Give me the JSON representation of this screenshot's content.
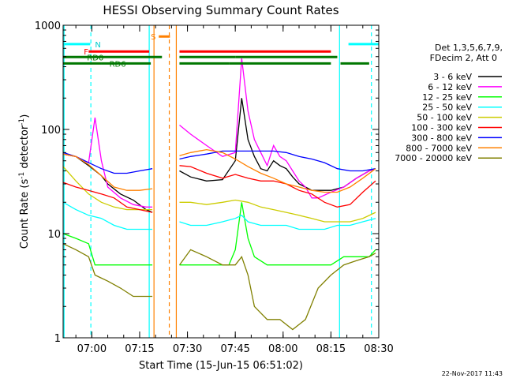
{
  "chart_data": {
    "type": "line",
    "title": "HESSI Observing Summary Count Rates",
    "xlabel": "Start Time (15-Jun-15 06:51:02)",
    "ylabel": "Count Rate (s",
    "ylabel_sup": "-1",
    "ylabel_mid": " detector",
    "ylabel_end": ")",
    "y_scale": "log",
    "ylim": [
      1,
      1000
    ],
    "xlim_minutes": [
      0,
      99
    ],
    "y_ticks": [
      {
        "value": 1,
        "label": "1"
      },
      {
        "value": 10,
        "label": "10"
      },
      {
        "value": 100,
        "label": "100"
      },
      {
        "value": 1000,
        "label": "1000"
      }
    ],
    "x_ticks": [
      {
        "value": 9,
        "label": "07:00"
      },
      {
        "value": 24,
        "label": "07:15"
      },
      {
        "value": 39,
        "label": "07:30"
      },
      {
        "value": 54,
        "label": "07:45"
      },
      {
        "value": 69,
        "label": "08:00"
      },
      {
        "value": 84,
        "label": "08:15"
      },
      {
        "value": 99,
        "label": "08:30"
      }
    ],
    "legend_header": [
      "Det 1,3,5,6,7,9,",
      "FDecim 2, Att 0"
    ],
    "timestamp": "22-Nov-2017 11:43",
    "data_gaps": [
      [
        28.5,
        36.5
      ]
    ],
    "series": [
      {
        "name": "3 - 6 keV",
        "color": "#000000",
        "values": [
          [
            0,
            58
          ],
          [
            4,
            55
          ],
          [
            8,
            45
          ],
          [
            12,
            36
          ],
          [
            14,
            30
          ],
          [
            18,
            24
          ],
          [
            22,
            21
          ],
          [
            26,
            17
          ],
          [
            28,
            16
          ],
          [
            36.5,
            40
          ],
          [
            40,
            35
          ],
          [
            45,
            32
          ],
          [
            50,
            33
          ],
          [
            54,
            50
          ],
          [
            56,
            200
          ],
          [
            58,
            80
          ],
          [
            60,
            55
          ],
          [
            62,
            42
          ],
          [
            64,
            40
          ],
          [
            66,
            50
          ],
          [
            68,
            45
          ],
          [
            70,
            42
          ],
          [
            72,
            35
          ],
          [
            74,
            30
          ],
          [
            76,
            28
          ],
          [
            78,
            26
          ],
          [
            80,
            26
          ],
          [
            84,
            26
          ],
          [
            88,
            28
          ],
          [
            92,
            34
          ],
          [
            96,
            40
          ],
          [
            98,
            42
          ]
        ]
      },
      {
        "name": "6 - 12 keV",
        "color": "#ff00ff",
        "values": [
          [
            0,
            58
          ],
          [
            4,
            55
          ],
          [
            8,
            48
          ],
          [
            10,
            130
          ],
          [
            12,
            50
          ],
          [
            14,
            28
          ],
          [
            18,
            22
          ],
          [
            22,
            19
          ],
          [
            26,
            18
          ],
          [
            28,
            18
          ],
          [
            36.5,
            110
          ],
          [
            40,
            90
          ],
          [
            45,
            70
          ],
          [
            50,
            55
          ],
          [
            54,
            60
          ],
          [
            56,
            480
          ],
          [
            58,
            150
          ],
          [
            60,
            80
          ],
          [
            62,
            60
          ],
          [
            64,
            45
          ],
          [
            66,
            70
          ],
          [
            68,
            55
          ],
          [
            70,
            50
          ],
          [
            72,
            40
          ],
          [
            74,
            32
          ],
          [
            76,
            28
          ],
          [
            78,
            22
          ],
          [
            80,
            22
          ],
          [
            84,
            25
          ],
          [
            88,
            28
          ],
          [
            92,
            34
          ],
          [
            96,
            40
          ],
          [
            98,
            42
          ]
        ]
      },
      {
        "name": "12 - 25 keV",
        "color": "#00ff00",
        "values": [
          [
            0,
            10
          ],
          [
            4,
            9
          ],
          [
            8,
            8
          ],
          [
            10,
            5
          ],
          [
            14,
            5
          ],
          [
            22,
            5
          ],
          [
            28,
            5
          ],
          [
            36.5,
            5
          ],
          [
            45,
            5
          ],
          [
            52,
            5
          ],
          [
            54,
            7
          ],
          [
            56,
            20
          ],
          [
            58,
            9
          ],
          [
            60,
            6
          ],
          [
            64,
            5
          ],
          [
            70,
            5
          ],
          [
            76,
            5
          ],
          [
            78,
            5
          ],
          [
            80,
            5
          ],
          [
            84,
            5
          ],
          [
            88,
            6
          ],
          [
            92,
            6
          ],
          [
            96,
            6
          ],
          [
            98,
            7
          ]
        ]
      },
      {
        "name": "25 - 50 keV",
        "color": "#00ffff",
        "values": [
          [
            0,
            20
          ],
          [
            4,
            17
          ],
          [
            8,
            15
          ],
          [
            12,
            14
          ],
          [
            16,
            12
          ],
          [
            20,
            11
          ],
          [
            24,
            11
          ],
          [
            28,
            11
          ],
          [
            36.5,
            13
          ],
          [
            40,
            12
          ],
          [
            45,
            12
          ],
          [
            50,
            13
          ],
          [
            54,
            14
          ],
          [
            56,
            15
          ],
          [
            58,
            13
          ],
          [
            62,
            12
          ],
          [
            66,
            12
          ],
          [
            70,
            12
          ],
          [
            74,
            11
          ],
          [
            78,
            11
          ],
          [
            82,
            11
          ],
          [
            86,
            12
          ],
          [
            90,
            12
          ],
          [
            94,
            13
          ],
          [
            98,
            14
          ]
        ]
      },
      {
        "name": "50 - 100 keV",
        "color": "#cccc00",
        "values": [
          [
            0,
            44
          ],
          [
            4,
            32
          ],
          [
            8,
            24
          ],
          [
            12,
            20
          ],
          [
            16,
            18
          ],
          [
            20,
            17
          ],
          [
            24,
            17
          ],
          [
            28,
            17
          ],
          [
            36.5,
            20
          ],
          [
            40,
            20
          ],
          [
            45,
            19
          ],
          [
            50,
            20
          ],
          [
            54,
            21
          ],
          [
            58,
            20
          ],
          [
            62,
            18
          ],
          [
            66,
            17
          ],
          [
            70,
            16
          ],
          [
            74,
            15
          ],
          [
            78,
            14
          ],
          [
            82,
            13
          ],
          [
            86,
            13
          ],
          [
            90,
            13
          ],
          [
            94,
            14
          ],
          [
            98,
            16
          ]
        ]
      },
      {
        "name": "100 - 300 keV",
        "color": "#ff0000",
        "values": [
          [
            0,
            31
          ],
          [
            4,
            28
          ],
          [
            8,
            26
          ],
          [
            12,
            24
          ],
          [
            16,
            22
          ],
          [
            20,
            18
          ],
          [
            24,
            17
          ],
          [
            28,
            16
          ],
          [
            36.5,
            45
          ],
          [
            40,
            44
          ],
          [
            45,
            38
          ],
          [
            50,
            34
          ],
          [
            54,
            37
          ],
          [
            58,
            34
          ],
          [
            62,
            32
          ],
          [
            66,
            32
          ],
          [
            70,
            30
          ],
          [
            74,
            26
          ],
          [
            78,
            24
          ],
          [
            82,
            20
          ],
          [
            86,
            18
          ],
          [
            90,
            19
          ],
          [
            94,
            25
          ],
          [
            98,
            32
          ]
        ]
      },
      {
        "name": "300 - 800 keV",
        "color": "#0000ff",
        "values": [
          [
            0,
            60
          ],
          [
            4,
            55
          ],
          [
            8,
            48
          ],
          [
            12,
            42
          ],
          [
            16,
            38
          ],
          [
            20,
            38
          ],
          [
            24,
            40
          ],
          [
            28,
            42
          ],
          [
            36.5,
            52
          ],
          [
            40,
            55
          ],
          [
            45,
            58
          ],
          [
            50,
            62
          ],
          [
            54,
            62
          ],
          [
            58,
            62
          ],
          [
            62,
            62
          ],
          [
            66,
            62
          ],
          [
            70,
            60
          ],
          [
            74,
            55
          ],
          [
            78,
            52
          ],
          [
            82,
            48
          ],
          [
            86,
            42
          ],
          [
            90,
            40
          ],
          [
            94,
            40
          ],
          [
            98,
            42
          ]
        ]
      },
      {
        "name": "800 - 7000 keV",
        "color": "#ff8000",
        "values": [
          [
            0,
            58
          ],
          [
            4,
            55
          ],
          [
            8,
            46
          ],
          [
            12,
            36
          ],
          [
            16,
            28
          ],
          [
            20,
            26
          ],
          [
            24,
            26
          ],
          [
            28,
            27
          ],
          [
            36.5,
            56
          ],
          [
            40,
            60
          ],
          [
            45,
            64
          ],
          [
            50,
            60
          ],
          [
            54,
            52
          ],
          [
            58,
            44
          ],
          [
            62,
            38
          ],
          [
            66,
            34
          ],
          [
            70,
            30
          ],
          [
            74,
            28
          ],
          [
            78,
            26
          ],
          [
            82,
            25
          ],
          [
            86,
            25
          ],
          [
            90,
            28
          ],
          [
            94,
            34
          ],
          [
            98,
            42
          ]
        ]
      },
      {
        "name": "7000 - 20000 keV",
        "color": "#808000",
        "values": [
          [
            0,
            8
          ],
          [
            4,
            7
          ],
          [
            8,
            6
          ],
          [
            10,
            4
          ],
          [
            14,
            3.5
          ],
          [
            18,
            3
          ],
          [
            22,
            2.5
          ],
          [
            26,
            2.5
          ],
          [
            28,
            2.5
          ],
          [
            36.5,
            5
          ],
          [
            40,
            7
          ],
          [
            45,
            6
          ],
          [
            50,
            5
          ],
          [
            54,
            5
          ],
          [
            56,
            6
          ],
          [
            58,
            4
          ],
          [
            60,
            2
          ],
          [
            64,
            1.5
          ],
          [
            68,
            1.5
          ],
          [
            72,
            1.2
          ],
          [
            76,
            1.5
          ],
          [
            80,
            3
          ],
          [
            84,
            4
          ],
          [
            88,
            5
          ],
          [
            92,
            5.5
          ],
          [
            96,
            6
          ],
          [
            98,
            6.5
          ]
        ]
      }
    ],
    "annotations": {
      "flag_levels": {
        "N": 660,
        "F": 560,
        "S": 780,
        "RD0": 495,
        "RD6": 430
      },
      "flag_labels": [
        "N",
        "F",
        "S",
        "RD0",
        "RD6"
      ],
      "spans": [
        {
          "flag": "N",
          "color": "#00ffff",
          "ranges": [
            [
              0,
              8.5
            ],
            [
              89.5,
              99
            ]
          ]
        },
        {
          "flag": "F",
          "color": "#ff0000",
          "ranges": [
            [
              8,
              27
            ],
            [
              36.5,
              84
            ]
          ]
        },
        {
          "flag": "S",
          "color": "#ff8000",
          "ranges": [
            [
              30,
              33.5
            ]
          ]
        },
        {
          "flag": "RD0",
          "color": "#007700",
          "ranges": [
            [
              0,
              12
            ],
            [
              12,
              31
            ],
            [
              36.5,
              54
            ],
            [
              54,
              86
            ]
          ]
        },
        {
          "flag": "RD6",
          "color": "#007700",
          "ranges": [
            [
              0,
              12
            ],
            [
              12,
              27.5
            ],
            [
              36.5,
              52
            ],
            [
              52,
              84
            ],
            [
              87,
              96
            ]
          ]
        }
      ],
      "vlines": [
        {
          "x": 0.3,
          "color": "#00ffff",
          "style": "solid"
        },
        {
          "x": 8.7,
          "color": "#00ffff",
          "style": "dashed"
        },
        {
          "x": 27.0,
          "color": "#00ffff",
          "style": "solid"
        },
        {
          "x": 28.5,
          "color": "#ff8000",
          "style": "solid"
        },
        {
          "x": 33.3,
          "color": "#ff8000",
          "style": "dashed"
        },
        {
          "x": 35.5,
          "color": "#ff8000",
          "style": "solid"
        },
        {
          "x": 86.7,
          "color": "#00ffff",
          "style": "solid"
        },
        {
          "x": 96.7,
          "color": "#00ffff",
          "style": "dashed"
        }
      ]
    }
  }
}
